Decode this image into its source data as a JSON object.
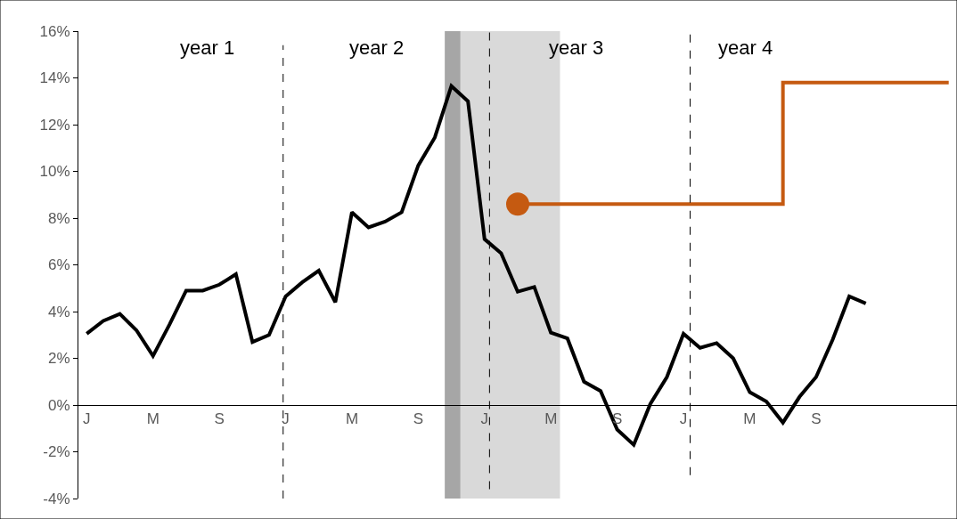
{
  "chart_data": {
    "type": "line",
    "categories": [
      "J",
      null,
      null,
      null,
      "M",
      null,
      null,
      null,
      "S",
      null,
      null,
      null,
      "J",
      null,
      null,
      null,
      "M",
      null,
      null,
      null,
      "S",
      null,
      null,
      null,
      "J",
      null,
      null,
      null,
      "M",
      null,
      null,
      null,
      "S",
      null,
      null,
      null,
      "J",
      null,
      null,
      null,
      "M",
      null,
      null,
      null,
      "S",
      null,
      null,
      null,
      null,
      null,
      null,
      null,
      null
    ],
    "series": [
      {
        "color": "#000000",
        "values": [
          3.05,
          3.6,
          3.9,
          3.2,
          2.1,
          3.45,
          4.9,
          4.9,
          5.15,
          5.6,
          2.7,
          3.0,
          4.65,
          5.25,
          5.75,
          4.4,
          8.25,
          7.6,
          7.85,
          8.25,
          10.25,
          11.45,
          13.65,
          13.0,
          7.1,
          6.5,
          4.85,
          5.05,
          3.1,
          2.85,
          1.0,
          0.6,
          -1.05,
          -1.7,
          0.05,
          1.2,
          3.05,
          2.45,
          2.65,
          2.0,
          0.55,
          0.15,
          -0.75,
          0.35,
          1.2,
          2.8,
          4.65,
          4.35,
          null,
          null,
          null,
          null,
          null
        ]
      },
      {
        "type": "step",
        "color": "#c55a11",
        "values": [
          null,
          null,
          null,
          null,
          null,
          null,
          null,
          null,
          null,
          null,
          null,
          null,
          null,
          null,
          null,
          null,
          null,
          null,
          null,
          null,
          null,
          null,
          null,
          null,
          null,
          null,
          8.6,
          8.6,
          8.6,
          8.6,
          8.6,
          8.6,
          8.6,
          8.6,
          8.6,
          8.6,
          8.6,
          8.6,
          8.6,
          8.6,
          8.6,
          8.6,
          13.8,
          13.8,
          13.8,
          13.8,
          13.8,
          13.8,
          13.8,
          13.8,
          13.8,
          13.8,
          13.8
        ]
      },
      {
        "type": "scatter",
        "color": "#c55a11",
        "values": [
          null,
          null,
          null,
          null,
          null,
          null,
          null,
          null,
          null,
          null,
          null,
          null,
          null,
          null,
          null,
          null,
          null,
          null,
          null,
          null,
          null,
          null,
          null,
          null,
          null,
          null,
          8.6,
          null,
          null,
          null,
          null,
          null,
          null,
          null,
          null,
          null,
          null,
          null,
          null,
          null,
          null,
          null,
          null,
          null,
          null,
          null,
          null,
          null,
          null,
          null,
          null,
          null,
          null
        ],
        "marker": "circle"
      }
    ],
    "ylim": [
      -4,
      16
    ],
    "yticks": [
      {
        "value": -4,
        "label": "-4%"
      },
      {
        "value": -2,
        "label": "-2%"
      },
      {
        "value": 0,
        "label": "0%"
      },
      {
        "value": 2,
        "label": "2%"
      },
      {
        "value": 4,
        "label": "4%"
      },
      {
        "value": 6,
        "label": "6%"
      },
      {
        "value": 8,
        "label": "8%"
      },
      {
        "value": 10,
        "label": "10%"
      },
      {
        "value": 12,
        "label": "12%"
      },
      {
        "value": 14,
        "label": "14%"
      },
      {
        "value": 16,
        "label": "16%"
      }
    ],
    "annotations": [
      "year 1",
      "year 2",
      "year 3",
      "year 4"
    ],
    "marker": "none",
    "line_style": "solid",
    "grid": false
  }
}
